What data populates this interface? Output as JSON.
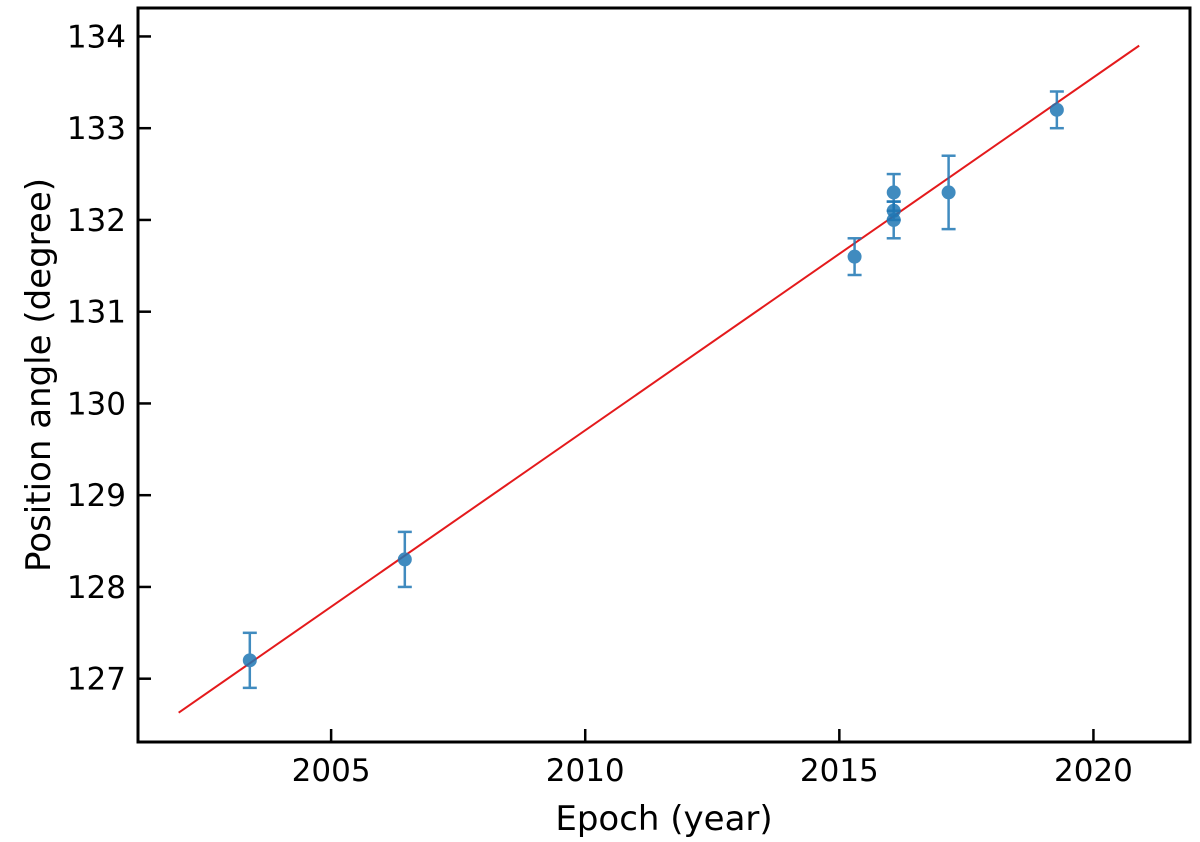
{
  "chart_data": {
    "type": "scatter",
    "title": "",
    "xlabel": "Epoch (year)",
    "ylabel": "Position angle (degree)",
    "xlim": [
      2001.2,
      2021.9
    ],
    "ylim": [
      126.31,
      134.31
    ],
    "xticks": [
      2005,
      2010,
      2015,
      2020
    ],
    "yticks": [
      127,
      128,
      129,
      130,
      131,
      132,
      133,
      134
    ],
    "grid": false,
    "legend": "none",
    "tick_direction": "in",
    "series": [
      {
        "kind": "errorbar",
        "color": "#1f77b4",
        "points": [
          {
            "x": 2003.4,
            "y": 127.2,
            "yerr": 0.3
          },
          {
            "x": 2006.45,
            "y": 128.3,
            "yerr": 0.3
          },
          {
            "x": 2015.3,
            "y": 131.6,
            "yerr": 0.2
          },
          {
            "x": 2016.07,
            "y": 132.0,
            "yerr": 0.2
          },
          {
            "x": 2016.07,
            "y": 132.1,
            "yerr": 0.1
          },
          {
            "x": 2016.07,
            "y": 132.3,
            "yerr": 0.2
          },
          {
            "x": 2017.15,
            "y": 132.3,
            "yerr": 0.4
          },
          {
            "x": 2019.28,
            "y": 133.2,
            "yerr": 0.2
          }
        ]
      },
      {
        "kind": "fit-line",
        "color": "#e41a1c",
        "x": [
          2002.0,
          2020.9
        ],
        "y": [
          126.63,
          133.9
        ]
      }
    ]
  }
}
